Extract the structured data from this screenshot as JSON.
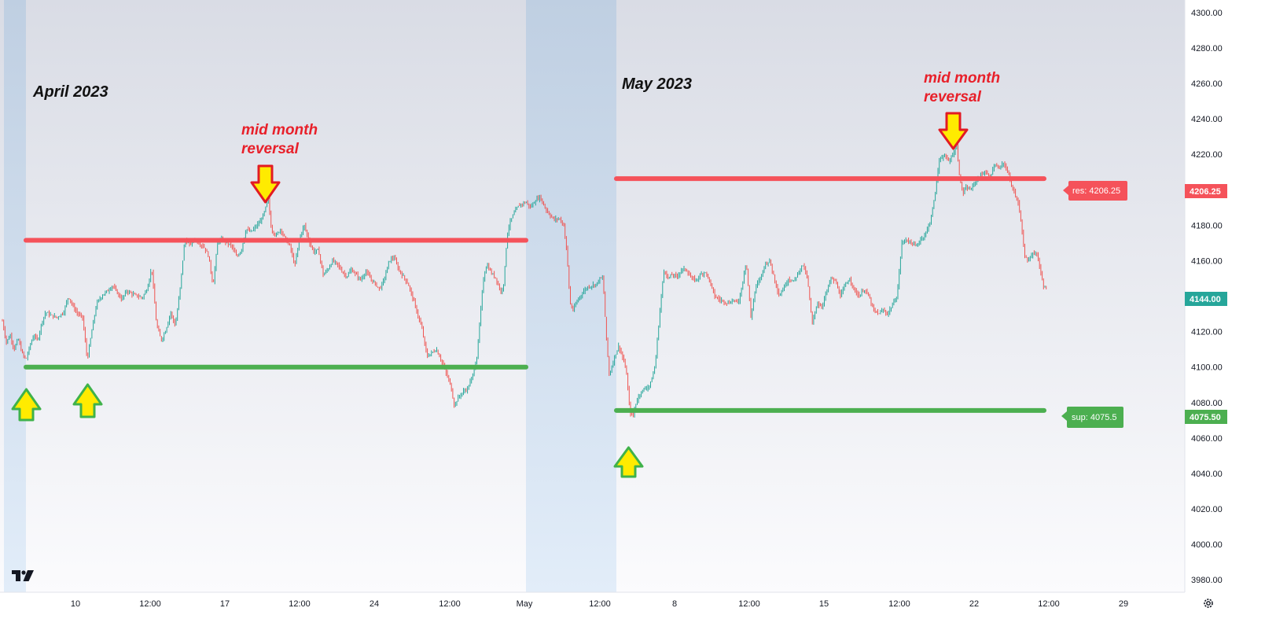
{
  "chart_data": {
    "type": "candlestick",
    "x_ticks": [
      "10",
      "12:00",
      "17",
      "12:00",
      "24",
      "12:00",
      "May",
      "12:00",
      "8",
      "12:00",
      "15",
      "12:00",
      "22",
      "12:00",
      "29"
    ],
    "y_ticks": [
      "4300.00",
      "4280.00",
      "4260.00",
      "4240.00",
      "4220.00",
      "4200.00",
      "4180.00",
      "4160.00",
      "4140.00",
      "4120.00",
      "4100.00",
      "4080.00",
      "4060.00",
      "4040.00",
      "4020.00",
      "4000.00",
      "3980.00"
    ],
    "ylim": [
      3973,
      4307
    ],
    "close_path": [
      [
        0,
        4126
      ],
      [
        5,
        4114
      ],
      [
        10,
        4118
      ],
      [
        15,
        4110
      ],
      [
        20,
        4116
      ],
      [
        25,
        4108
      ],
      [
        30,
        4104
      ],
      [
        35,
        4112
      ],
      [
        40,
        4118
      ],
      [
        45,
        4115
      ],
      [
        50,
        4125
      ],
      [
        55,
        4131
      ],
      [
        62,
        4129
      ],
      [
        70,
        4128
      ],
      [
        78,
        4131
      ],
      [
        84,
        4140
      ],
      [
        90,
        4134
      ],
      [
        96,
        4130
      ],
      [
        102,
        4128
      ],
      [
        108,
        4104
      ],
      [
        114,
        4121
      ],
      [
        120,
        4136
      ],
      [
        128,
        4141
      ],
      [
        134,
        4143
      ],
      [
        140,
        4146
      ],
      [
        146,
        4142
      ],
      [
        152,
        4138
      ],
      [
        158,
        4143
      ],
      [
        166,
        4141
      ],
      [
        172,
        4140
      ],
      [
        178,
        4139
      ],
      [
        184,
        4144
      ],
      [
        190,
        4156
      ],
      [
        196,
        4124
      ],
      [
        202,
        4115
      ],
      [
        208,
        4121
      ],
      [
        214,
        4131
      ],
      [
        220,
        4123
      ],
      [
        226,
        4144
      ],
      [
        232,
        4172
      ],
      [
        238,
        4169
      ],
      [
        244,
        4172
      ],
      [
        250,
        4170
      ],
      [
        256,
        4168
      ],
      [
        262,
        4163
      ],
      [
        268,
        4146
      ],
      [
        274,
        4171
      ],
      [
        280,
        4172
      ],
      [
        286,
        4170
      ],
      [
        292,
        4168
      ],
      [
        298,
        4162
      ],
      [
        304,
        4166
      ],
      [
        310,
        4178
      ],
      [
        316,
        4176
      ],
      [
        322,
        4179
      ],
      [
        328,
        4182
      ],
      [
        334,
        4188
      ],
      [
        338,
        4196
      ],
      [
        342,
        4178
      ],
      [
        348,
        4174
      ],
      [
        354,
        4178
      ],
      [
        360,
        4172
      ],
      [
        366,
        4168
      ],
      [
        372,
        4157
      ],
      [
        378,
        4173
      ],
      [
        384,
        4180
      ],
      [
        390,
        4171
      ],
      [
        396,
        4165
      ],
      [
        402,
        4166
      ],
      [
        408,
        4152
      ],
      [
        414,
        4155
      ],
      [
        420,
        4160
      ],
      [
        426,
        4158
      ],
      [
        432,
        4154
      ],
      [
        438,
        4151
      ],
      [
        444,
        4155
      ],
      [
        450,
        4152
      ],
      [
        456,
        4149
      ],
      [
        462,
        4154
      ],
      [
        468,
        4150
      ],
      [
        474,
        4147
      ],
      [
        480,
        4144
      ],
      [
        486,
        4150
      ],
      [
        492,
        4160
      ],
      [
        498,
        4162
      ],
      [
        504,
        4155
      ],
      [
        510,
        4151
      ],
      [
        516,
        4147
      ],
      [
        522,
        4139
      ],
      [
        528,
        4130
      ],
      [
        534,
        4121
      ],
      [
        540,
        4106
      ],
      [
        546,
        4108
      ],
      [
        552,
        4110
      ],
      [
        558,
        4104
      ],
      [
        564,
        4097
      ],
      [
        570,
        4090
      ],
      [
        575,
        4078
      ],
      [
        580,
        4083
      ],
      [
        586,
        4086
      ],
      [
        592,
        4088
      ],
      [
        598,
        4095
      ],
      [
        604,
        4107
      ],
      [
        608,
        4130
      ],
      [
        612,
        4150
      ],
      [
        616,
        4158
      ],
      [
        622,
        4153
      ],
      [
        628,
        4150
      ],
      [
        634,
        4142
      ],
      [
        638,
        4148
      ],
      [
        642,
        4175
      ],
      [
        646,
        4182
      ],
      [
        650,
        4186
      ],
      [
        655,
        4190
      ],
      [
        660,
        4192
      ],
      [
        666,
        4193
      ],
      [
        672,
        4190
      ],
      [
        678,
        4194
      ],
      [
        684,
        4196
      ],
      [
        690,
        4190
      ],
      [
        696,
        4186
      ],
      [
        702,
        4183
      ],
      [
        708,
        4184
      ],
      [
        714,
        4180
      ],
      [
        718,
        4165
      ],
      [
        722,
        4136
      ],
      [
        726,
        4132
      ],
      [
        732,
        4138
      ],
      [
        738,
        4142
      ],
      [
        744,
        4145
      ],
      [
        750,
        4146
      ],
      [
        756,
        4147
      ],
      [
        760,
        4150
      ],
      [
        764,
        4150
      ],
      [
        768,
        4118
      ],
      [
        772,
        4095
      ],
      [
        778,
        4105
      ],
      [
        784,
        4112
      ],
      [
        790,
        4104
      ],
      [
        794,
        4096
      ],
      [
        798,
        4075
      ],
      [
        802,
        4072
      ],
      [
        806,
        4080
      ],
      [
        812,
        4086
      ],
      [
        818,
        4088
      ],
      [
        824,
        4090
      ],
      [
        830,
        4100
      ],
      [
        834,
        4120
      ],
      [
        838,
        4140
      ],
      [
        842,
        4156
      ],
      [
        846,
        4150
      ],
      [
        852,
        4152
      ],
      [
        858,
        4151
      ],
      [
        864,
        4155
      ],
      [
        870,
        4155
      ],
      [
        876,
        4150
      ],
      [
        882,
        4149
      ],
      [
        888,
        4152
      ],
      [
        894,
        4154
      ],
      [
        900,
        4148
      ],
      [
        906,
        4140
      ],
      [
        912,
        4138
      ],
      [
        918,
        4137
      ],
      [
        924,
        4136
      ],
      [
        930,
        4138
      ],
      [
        936,
        4136
      ],
      [
        940,
        4144
      ],
      [
        946,
        4160
      ],
      [
        952,
        4128
      ],
      [
        958,
        4145
      ],
      [
        964,
        4150
      ],
      [
        970,
        4158
      ],
      [
        976,
        4160
      ],
      [
        982,
        4150
      ],
      [
        988,
        4140
      ],
      [
        994,
        4145
      ],
      [
        1000,
        4150
      ],
      [
        1006,
        4148
      ],
      [
        1012,
        4153
      ],
      [
        1018,
        4158
      ],
      [
        1024,
        4150
      ],
      [
        1030,
        4124
      ],
      [
        1036,
        4136
      ],
      [
        1042,
        4134
      ],
      [
        1048,
        4142
      ],
      [
        1054,
        4150
      ],
      [
        1060,
        4148
      ],
      [
        1066,
        4140
      ],
      [
        1072,
        4146
      ],
      [
        1078,
        4150
      ],
      [
        1084,
        4143
      ],
      [
        1090,
        4140
      ],
      [
        1096,
        4144
      ],
      [
        1102,
        4140
      ],
      [
        1108,
        4132
      ],
      [
        1114,
        4130
      ],
      [
        1120,
        4132
      ],
      [
        1126,
        4130
      ],
      [
        1132,
        4135
      ],
      [
        1138,
        4140
      ],
      [
        1144,
        4170
      ],
      [
        1150,
        4172
      ],
      [
        1156,
        4170
      ],
      [
        1162,
        4168
      ],
      [
        1168,
        4172
      ],
      [
        1174,
        4175
      ],
      [
        1180,
        4182
      ],
      [
        1186,
        4196
      ],
      [
        1192,
        4218
      ],
      [
        1198,
        4219
      ],
      [
        1204,
        4216
      ],
      [
        1210,
        4221
      ],
      [
        1214,
        4225
      ],
      [
        1218,
        4205
      ],
      [
        1222,
        4198
      ],
      [
        1226,
        4201
      ],
      [
        1232,
        4200
      ],
      [
        1238,
        4205
      ],
      [
        1244,
        4208
      ],
      [
        1250,
        4210
      ],
      [
        1256,
        4207
      ],
      [
        1262,
        4214
      ],
      [
        1268,
        4212
      ],
      [
        1274,
        4215
      ],
      [
        1278,
        4211
      ],
      [
        1282,
        4205
      ],
      [
        1286,
        4200
      ],
      [
        1292,
        4193
      ],
      [
        1296,
        4180
      ],
      [
        1300,
        4163
      ],
      [
        1304,
        4160
      ],
      [
        1310,
        4164
      ],
      [
        1316,
        4164
      ],
      [
        1320,
        4155
      ],
      [
        1324,
        4146
      ],
      [
        1328,
        4144
      ]
    ],
    "last_price": "4144.00",
    "lines": [
      {
        "name": "res",
        "value": 4206.25,
        "label": "res: 4206.25",
        "axis_label": "4206.25",
        "color": "#f5525a"
      },
      {
        "name": "sup",
        "value": 4075.5,
        "label": "sup: 4075.5",
        "axis_label": "4075.50",
        "color": "#4caf50"
      }
    ],
    "segments": [
      {
        "name": "april-resistance",
        "value": 4171.5,
        "color": "#f5525a"
      },
      {
        "name": "april-support",
        "value": 4100,
        "color": "#4caf50"
      }
    ],
    "annotations": {
      "april": "April 2023",
      "may": "May 2023",
      "reversal_1_line1": "mid month",
      "reversal_1_line2": "reversal",
      "reversal_2_line1": "mid month",
      "reversal_2_line2": "reversal"
    },
    "colors": {
      "up": "#26a69a",
      "down": "#ef5350",
      "last": "#26a69a"
    }
  },
  "icons": [
    "tradingview-logo-icon",
    "settings-icon"
  ]
}
